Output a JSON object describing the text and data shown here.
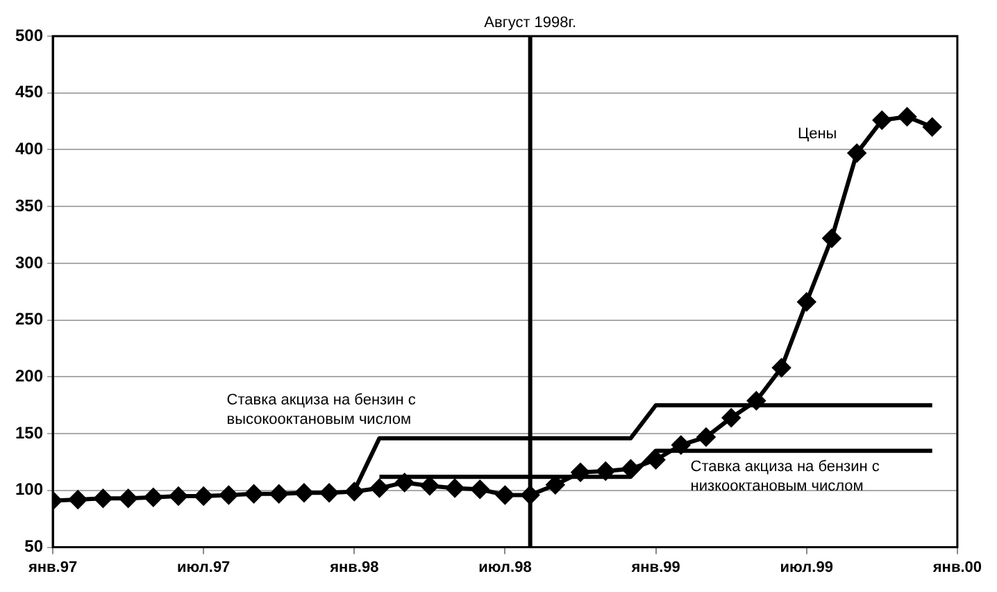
{
  "chart_data": {
    "type": "line",
    "xlim": [
      "1997-01",
      "2000-01"
    ],
    "xticks": [
      {
        "value": "1997-01",
        "label": "янв.97"
      },
      {
        "value": "1997-07",
        "label": "июл.97"
      },
      {
        "value": "1998-01",
        "label": "янв.98"
      },
      {
        "value": "1998-07",
        "label": "июл.98"
      },
      {
        "value": "1999-01",
        "label": "янв.99"
      },
      {
        "value": "1999-07",
        "label": "июл.99"
      },
      {
        "value": "2000-01",
        "label": "янв.00"
      }
    ],
    "ylim": [
      50,
      500
    ],
    "yticks": [
      50,
      100,
      150,
      200,
      250,
      300,
      350,
      400,
      450,
      500
    ],
    "grid": "y",
    "legend": false,
    "ref_lines": [
      {
        "axis": "x",
        "value": "1998-08",
        "label": "Август 1998г."
      }
    ],
    "series": [
      {
        "name": "Цены",
        "color": "#000000",
        "marker": "diamond",
        "x": [
          "1997-01",
          "1997-02",
          "1997-03",
          "1997-04",
          "1997-05",
          "1997-06",
          "1997-07",
          "1997-08",
          "1997-09",
          "1997-10",
          "1997-11",
          "1997-12",
          "1998-01",
          "1998-02",
          "1998-03",
          "1998-04",
          "1998-05",
          "1998-06",
          "1998-07",
          "1998-08",
          "1998-09",
          "1998-10",
          "1998-11",
          "1998-12",
          "1999-01",
          "1999-02",
          "1999-03",
          "1999-04",
          "1999-05",
          "1999-06",
          "1999-07",
          "1999-08",
          "1999-09",
          "1999-10",
          "1999-11",
          "1999-12"
        ],
        "values": [
          91,
          92,
          93,
          93,
          94,
          95,
          95,
          96,
          97,
          97,
          98,
          98,
          99,
          102,
          107,
          104,
          102,
          101,
          96,
          96,
          105,
          116,
          117,
          119,
          127,
          140,
          147,
          164,
          179,
          208,
          266,
          322,
          397,
          426,
          429,
          420
        ]
      },
      {
        "name": "Ставка акциза на бензин с высокооктановым числом",
        "color": "#000000",
        "marker": "none",
        "x": [
          "1998-01",
          "1998-02",
          "1998-12",
          "1999-01",
          "1999-12"
        ],
        "values": [
          100,
          146,
          146,
          175,
          175
        ]
      },
      {
        "name": "Ставка акциза на бензин с низкооктановым числом",
        "color": "#000000",
        "marker": "none",
        "x": [
          "1998-02",
          "1998-12",
          "1999-01",
          "1999-12"
        ],
        "values": [
          112,
          112,
          135,
          135
        ]
      }
    ]
  }
}
